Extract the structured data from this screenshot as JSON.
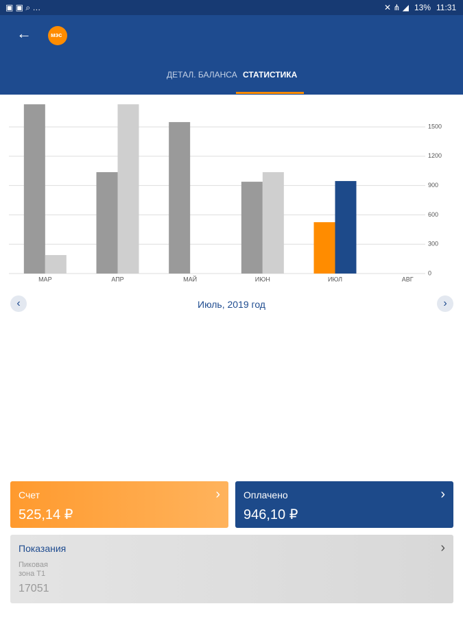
{
  "status_bar": {
    "battery": "13%",
    "time": "11:31"
  },
  "header": {
    "logo": "мэс"
  },
  "tabs": [
    "ДЕТАЛ. БАЛАНСА",
    "СТАТИСТИКА"
  ],
  "chart_data": {
    "type": "bar",
    "categories": [
      "МАР",
      "АПР",
      "МАЙ",
      "ИЮН",
      "ИЮЛ",
      "АВГ"
    ],
    "series": [
      {
        "colors": [
          "#9a9a9a",
          "#9a9a9a",
          "#9a9a9a",
          "#9a9a9a",
          "#ff8c00",
          "#9a9a9a"
        ],
        "values": [
          1731,
          1037,
          1549,
          939,
          525.14,
          null
        ]
      },
      {
        "colors": [
          "#cfcfcf",
          "#cfcfcf",
          "#cfcfcf",
          "#cfcfcf",
          "#1d4a8a",
          "#cfcfcf"
        ],
        "values": [
          189,
          1731,
          null,
          1037,
          946.1,
          null
        ]
      }
    ],
    "ylim": [
      0,
      1760
    ],
    "yticks": [
      0,
      300,
      600,
      900,
      1200,
      1500
    ],
    "grid": true
  },
  "period": "Июль, 2019 год",
  "cards": {
    "bill": {
      "title": "Счет",
      "amount": "525,14 ₽"
    },
    "paid": {
      "title": "Оплачено",
      "amount": "946,10 ₽"
    },
    "readings": {
      "title": "Показания",
      "zone": [
        "Пиковая",
        "зона Т1"
      ],
      "value": "17051"
    }
  }
}
